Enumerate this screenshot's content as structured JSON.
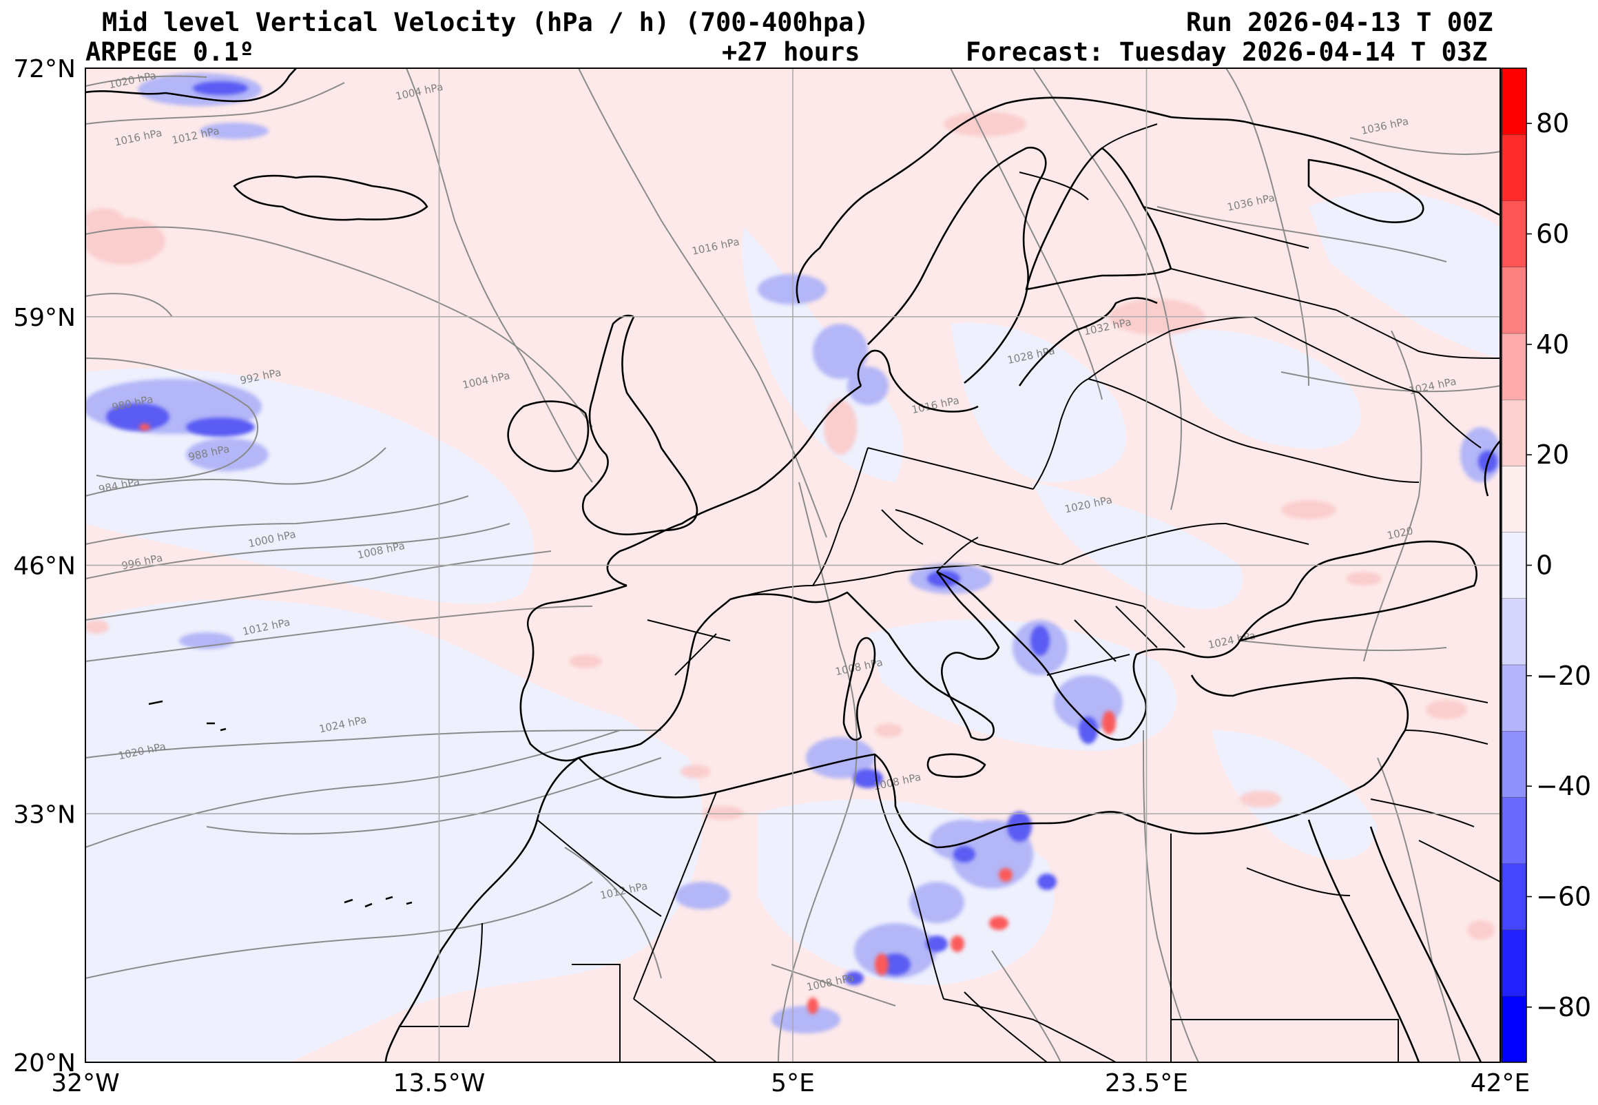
{
  "header": {
    "title": "Mid level Vertical Velocity (hPa / h)  (700-400hpa)",
    "model": "ARPEGE 0.1º",
    "lead": "+27 hours",
    "run": "Run 2026-04-13 T 00Z",
    "forecast": "Forecast: Tuesday 2026-04-14 T 03Z"
  },
  "map": {
    "lon_range": [
      -32,
      42
    ],
    "lat_range": [
      20,
      72
    ],
    "lon_ticks": [
      {
        "value": -32,
        "label": "32°W"
      },
      {
        "value": -13.5,
        "label": "13.5°W"
      },
      {
        "value": 5,
        "label": "5°E"
      },
      {
        "value": 23.5,
        "label": "23.5°E"
      },
      {
        "value": 42,
        "label": "42°E"
      }
    ],
    "lat_ticks": [
      {
        "value": 72,
        "label": "72°N"
      },
      {
        "value": 59,
        "label": "59°N"
      },
      {
        "value": 46,
        "label": "46°N"
      },
      {
        "value": 33,
        "label": "33°N"
      },
      {
        "value": 20,
        "label": "20°N"
      }
    ],
    "grid": true,
    "isobar_labels": [
      {
        "text": "1020 hPa",
        "lon": -29.5,
        "lat": 71.2
      },
      {
        "text": "1016 hPa",
        "lon": -29.2,
        "lat": 68.2
      },
      {
        "text": "1012 hPa",
        "lon": -26.2,
        "lat": 68.3
      },
      {
        "text": "1004 hPa",
        "lon": -14.5,
        "lat": 70.6
      },
      {
        "text": "1016 hPa",
        "lon": 1.0,
        "lat": 62.5
      },
      {
        "text": "1004 hPa",
        "lon": -11.0,
        "lat": 55.5
      },
      {
        "text": "992 hPa",
        "lon": -22.8,
        "lat": 55.7
      },
      {
        "text": "980 hPa",
        "lon": -29.5,
        "lat": 54.3
      },
      {
        "text": "988 hPa",
        "lon": -25.5,
        "lat": 51.7
      },
      {
        "text": "984 hPa",
        "lon": -30.2,
        "lat": 50.0
      },
      {
        "text": "1000 hPa",
        "lon": -22.2,
        "lat": 47.2
      },
      {
        "text": "996 hPa",
        "lon": -29.0,
        "lat": 46.0
      },
      {
        "text": "1008 hPa",
        "lon": -16.5,
        "lat": 46.6
      },
      {
        "text": "1012 hPa",
        "lon": -22.5,
        "lat": 42.6
      },
      {
        "text": "1020 hPa",
        "lon": -29.0,
        "lat": 36.1
      },
      {
        "text": "1024 hPa",
        "lon": -18.5,
        "lat": 37.5
      },
      {
        "text": "1008 hPa",
        "lon": 8.5,
        "lat": 40.5
      },
      {
        "text": "1008 hPa",
        "lon": 10.5,
        "lat": 34.5
      },
      {
        "text": "1012 hPa",
        "lon": -3.8,
        "lat": 28.8
      },
      {
        "text": "1008 hPa",
        "lon": 7.0,
        "lat": 24.0
      },
      {
        "text": "1036 hPa",
        "lon": 36.0,
        "lat": 68.8
      },
      {
        "text": "1036 hPa",
        "lon": 29.0,
        "lat": 64.8
      },
      {
        "text": "1032 hPa",
        "lon": 21.5,
        "lat": 58.3
      },
      {
        "text": "1028 hPa",
        "lon": 17.5,
        "lat": 56.8
      },
      {
        "text": "1016 hPa",
        "lon": 12.5,
        "lat": 54.2
      },
      {
        "text": "1020 hPa",
        "lon": 20.5,
        "lat": 49.0
      },
      {
        "text": "1024 hPa",
        "lon": 38.5,
        "lat": 55.2
      },
      {
        "text": "1024 hPa",
        "lon": 28.0,
        "lat": 41.9
      },
      {
        "text": "1020",
        "lon": 36.8,
        "lat": 47.5
      }
    ]
  },
  "colorbar": {
    "range": [
      -90,
      90
    ],
    "ticks": [
      {
        "value": 80,
        "label": "80"
      },
      {
        "value": 60,
        "label": "60"
      },
      {
        "value": 40,
        "label": "40"
      },
      {
        "value": 20,
        "label": "20"
      },
      {
        "value": 0,
        "label": "0"
      },
      {
        "value": -20,
        "label": "−20"
      },
      {
        "value": -40,
        "label": "−40"
      },
      {
        "value": -60,
        "label": "−60"
      },
      {
        "value": -80,
        "label": "−80"
      }
    ],
    "colors": [
      "#0000ff",
      "#2222fe",
      "#4545fd",
      "#6a6afc",
      "#9090fb",
      "#b4b4fb",
      "#d6d6fc",
      "#efefff",
      "#ffeeee",
      "#fdd0d0",
      "#fdaaaa",
      "#fd8080",
      "#fd5555",
      "#fe2b2b",
      "#ff0000"
    ],
    "positive_color": "#ff0000",
    "negative_color": "#0000ff",
    "neutral_positive": "#fde9e9",
    "neutral_negative": "#eef0fd"
  }
}
